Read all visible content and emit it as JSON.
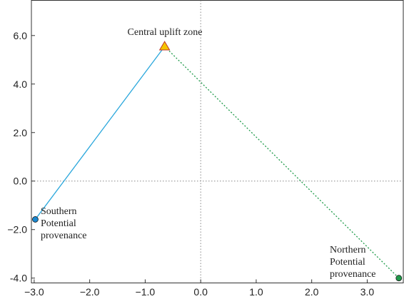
{
  "chart_data": {
    "type": "scatter",
    "title": "",
    "xlabel": "",
    "ylabel": "",
    "xlim": [
      -3.05,
      3.65
    ],
    "ylim": [
      -4.2,
      7.45
    ],
    "xticks": [
      -3.0,
      -2.0,
      -1.0,
      0.0,
      1.0,
      2.0,
      3.0
    ],
    "xtick_labels": [
      "−3.0",
      "−2.0",
      "−1.0",
      "0.0",
      "1.0",
      "2.0",
      "3.0"
    ],
    "yticks": [
      -4.0,
      -2.0,
      0.0,
      2.0,
      4.0,
      6.0
    ],
    "ytick_labels": [
      "-4.0",
      "−2.0",
      "0.0",
      "2.0",
      "4.0",
      "6.0"
    ],
    "reference_lines": {
      "x": 0.0,
      "y": 0.0,
      "style": "dotted",
      "color": "#888888"
    },
    "grid": false,
    "points": [
      {
        "name": "central",
        "x": -0.65,
        "y": 5.55,
        "marker": "triangle",
        "color": "#f5c400",
        "edge": "#c0392b"
      },
      {
        "name": "southern",
        "x": -2.98,
        "y": -1.58,
        "marker": "circle",
        "color": "#1a88d0",
        "edge": "#1a1a1a"
      },
      {
        "name": "northern",
        "x": 3.57,
        "y": -4.0,
        "marker": "circle",
        "color": "#1f9a4a",
        "edge": "#1a1a1a"
      }
    ],
    "lines": [
      {
        "from": "central",
        "to": "southern",
        "style": "solid",
        "color": "#2aa7dc"
      },
      {
        "from": "central",
        "to": "northern",
        "style": "dotted",
        "color": "#1f9a4a"
      }
    ],
    "annotations": [
      {
        "lines": [
          "Central uplift zone"
        ],
        "anchor": "central"
      },
      {
        "lines": [
          "Southern",
          "Potential",
          "provenance"
        ],
        "anchor": "southern"
      },
      {
        "lines": [
          "Northern",
          "Potential",
          "provenance"
        ],
        "anchor": "northern"
      }
    ]
  }
}
